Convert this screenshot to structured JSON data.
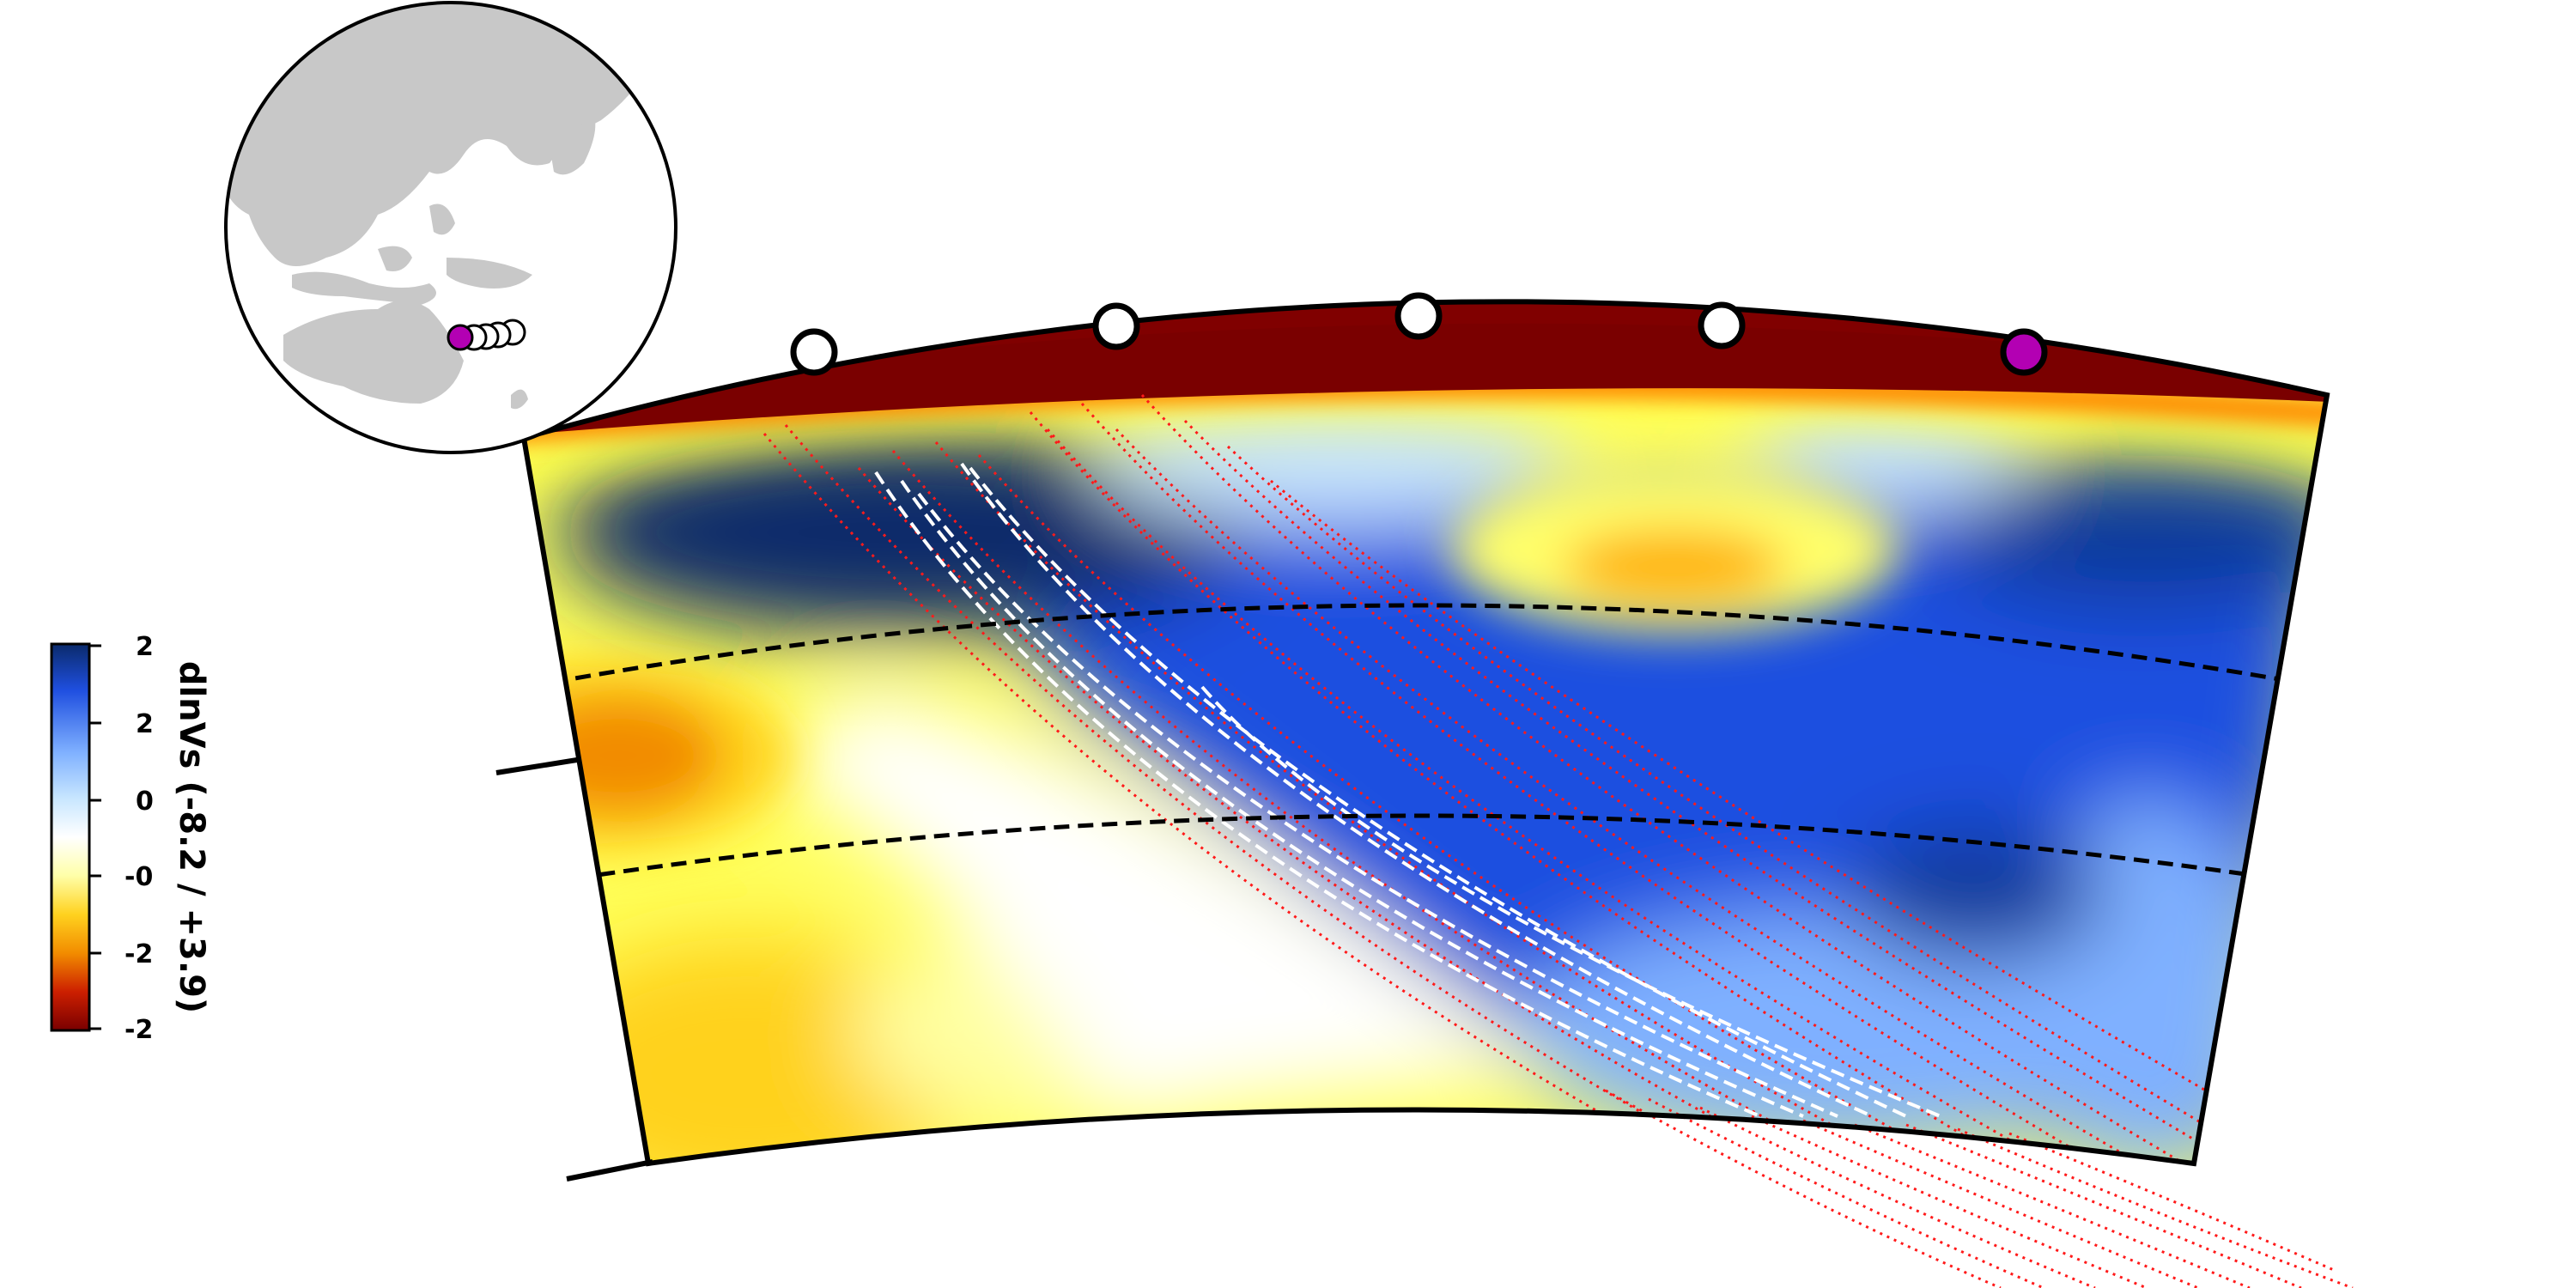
{
  "colorbar": {
    "label": "dlnVs (-8.2 / +3.9)",
    "ticks": [
      "2",
      "2",
      "0",
      "-0",
      "-2",
      "-2"
    ]
  },
  "colors": {
    "surface_band": "#800000",
    "cmap": [
      "#7a0000",
      "#cc1f00",
      "#f28c00",
      "#ffd21f",
      "#ffffa8",
      "#ffffff",
      "#c8e6ff",
      "#7fb0ff",
      "#1f4fe0",
      "#0a2a6b"
    ],
    "ray_white": "#ffffff",
    "ray_red": "#ff1a1a",
    "station": "#ffffff",
    "event": "#b300b3",
    "land": "#c8c8c8"
  },
  "markers": {
    "stations_on_section": 4,
    "event_on_section": 1,
    "event_fill": "#b300b3"
  }
}
